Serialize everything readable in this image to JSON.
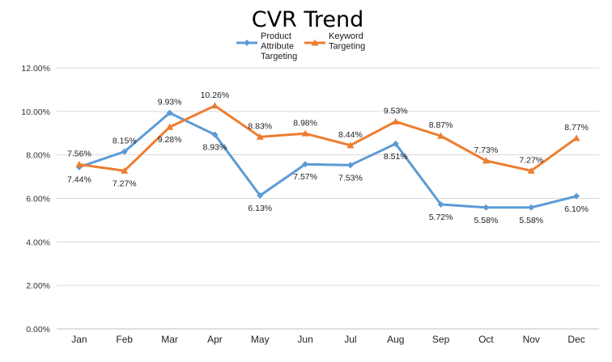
{
  "chart_data": {
    "type": "line",
    "title": "CVR Trend",
    "xlabel": "",
    "ylabel": "",
    "categories": [
      "Jan",
      "Feb",
      "Mar",
      "Apr",
      "May",
      "Jun",
      "Jul",
      "Aug",
      "Sep",
      "Oct",
      "Nov",
      "Dec"
    ],
    "ylim": [
      0,
      12
    ],
    "yticks": [
      "0.00%",
      "2.00%",
      "4.00%",
      "6.00%",
      "8.00%",
      "10.00%",
      "12.00%"
    ],
    "grid": true,
    "legend_position": "top",
    "series": [
      {
        "name": "Product Attribute Targeting",
        "legend_lines": [
          "Product",
          "Attribute",
          "Targeting"
        ],
        "color": "#5b9bd5",
        "marker": "diamond",
        "values": [
          7.44,
          8.15,
          9.93,
          8.93,
          6.13,
          7.57,
          7.53,
          8.51,
          5.72,
          5.58,
          5.58,
          6.1
        ],
        "labels": [
          "7.44%",
          "8.15%",
          "9.93%",
          "8.93%",
          "6.13%",
          "7.57%",
          "7.53%",
          "8.51%",
          "5.72%",
          "5.58%",
          "5.58%",
          "6.10%"
        ]
      },
      {
        "name": "Keyword Targeting",
        "legend_lines": [
          "Keyword",
          "Targeting"
        ],
        "color": "#ed7d31",
        "marker": "triangle",
        "values": [
          7.56,
          7.27,
          9.28,
          10.26,
          8.83,
          8.98,
          8.44,
          9.53,
          8.87,
          7.73,
          7.27,
          8.77
        ],
        "labels": [
          "7.56%",
          "7.27%",
          "9.28%",
          "10.26%",
          "8.83%",
          "8.98%",
          "8.44%",
          "9.53%",
          "8.87%",
          "7.73%",
          "7.27%",
          "8.77%"
        ]
      }
    ]
  }
}
